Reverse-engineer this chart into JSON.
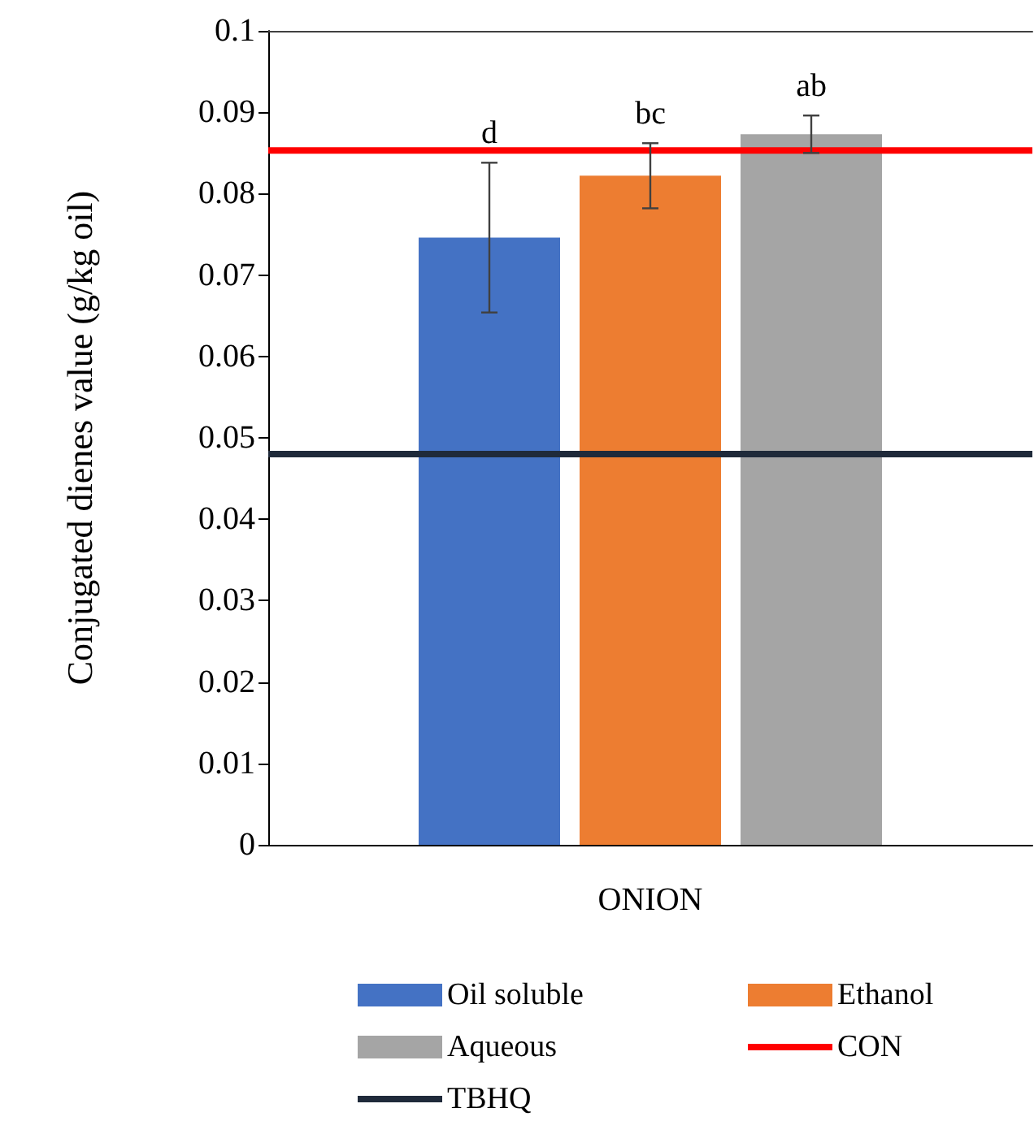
{
  "chart_data": {
    "type": "bar",
    "ylabel": "Conjugated dienes value (g/kg oil)",
    "categories": [
      "ONION"
    ],
    "series": [
      {
        "name": "Oil soluble",
        "color": "#4472c4",
        "values": [
          0.0746
        ],
        "errors": [
          0.0092
        ],
        "value_labels": [
          "d"
        ]
      },
      {
        "name": "Ethanol",
        "color": "#ed7d31",
        "values": [
          0.0822
        ],
        "errors": [
          0.004
        ],
        "value_labels": [
          "bc"
        ]
      },
      {
        "name": "Aqueous",
        "color": "#a5a5a5",
        "values": [
          0.0873
        ],
        "errors": [
          0.0023
        ],
        "value_labels": [
          "ab"
        ]
      }
    ],
    "ref_lines": [
      {
        "axis": "y",
        "value": 0.0853,
        "label": "CON",
        "color": "#ff0000"
      },
      {
        "axis": "y",
        "value": 0.048,
        "label": "TBHQ",
        "color": "#1f2a3a"
      }
    ],
    "ylim": [
      0,
      0.1
    ],
    "yticks": [
      0,
      0.01,
      0.02,
      0.03,
      0.04,
      0.05,
      0.06,
      0.07,
      0.08,
      0.09,
      0.1
    ],
    "grid": false,
    "legend": "bottom"
  }
}
